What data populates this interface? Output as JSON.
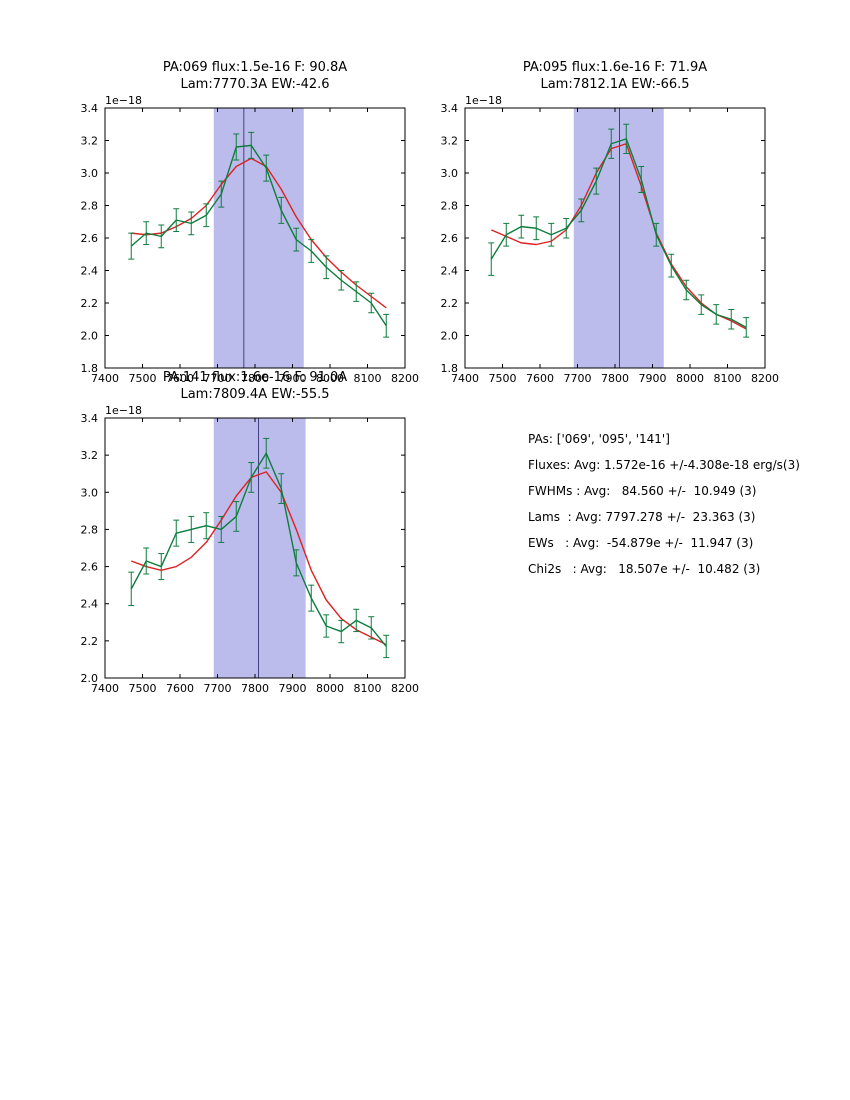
{
  "page": {
    "background": "#ffffff"
  },
  "stats": {
    "lines": [
      "PAs: ['069', '095', '141']",
      "Fluxes: Avg: 1.572e-16 +/-4.308e-18 erg/s(3)",
      "FWHMs : Avg:   84.560 +/-  10.949 (3)",
      "Lams  : Avg: 7797.278 +/-  23.363 (3)",
      "EWs   : Avg:  -54.879e +/-  11.947 (3)",
      "Chi2s   : Avg:   18.507e +/-  10.482 (3)"
    ]
  },
  "chart_data": [
    {
      "type": "line",
      "title_line1": "PA:069 flux:1.5e-16 F: 90.8A",
      "title_line2": "Lam:7770.3A EW:-42.6",
      "xlabel": "",
      "ylabel": "",
      "offset_label": "1e−18",
      "xlim": [
        7400,
        8200
      ],
      "ylim": [
        1.8,
        3.4
      ],
      "xticks": [
        7400,
        7500,
        7600,
        7700,
        7800,
        7900,
        8000,
        8100,
        8200
      ],
      "yticks": [
        1.8,
        2.0,
        2.2,
        2.4,
        2.6,
        2.8,
        3.0,
        3.2,
        3.4
      ],
      "band": [
        7690,
        7930
      ],
      "vline": 7770.3,
      "x": [
        7470,
        7510,
        7550,
        7590,
        7630,
        7670,
        7710,
        7750,
        7790,
        7830,
        7870,
        7910,
        7950,
        7990,
        8030,
        8070,
        8110,
        8150
      ],
      "series": [
        {
          "name": "spectrum",
          "color": "#0e7d3e",
          "values": [
            2.55,
            2.63,
            2.61,
            2.71,
            2.69,
            2.74,
            2.87,
            3.16,
            3.17,
            3.03,
            2.77,
            2.59,
            2.52,
            2.42,
            2.34,
            2.27,
            2.2,
            2.06
          ],
          "yerr": [
            0.08,
            0.07,
            0.07,
            0.07,
            0.07,
            0.07,
            0.08,
            0.08,
            0.08,
            0.08,
            0.08,
            0.07,
            0.07,
            0.07,
            0.06,
            0.06,
            0.06,
            0.07
          ]
        },
        {
          "name": "fit",
          "color": "#dd2222",
          "values": [
            2.63,
            2.62,
            2.63,
            2.67,
            2.72,
            2.8,
            2.93,
            3.04,
            3.09,
            3.04,
            2.9,
            2.73,
            2.59,
            2.48,
            2.39,
            2.31,
            2.24,
            2.17
          ]
        }
      ],
      "colors": {
        "band": "#bcbcec",
        "vline": "#222266",
        "frame": "#000000"
      }
    },
    {
      "type": "line",
      "title_line1": "PA:095 flux:1.6e-16 F: 71.9A",
      "title_line2": "Lam:7812.1A EW:-66.5",
      "xlabel": "",
      "ylabel": "",
      "offset_label": "1e−18",
      "xlim": [
        7400,
        8200
      ],
      "ylim": [
        1.8,
        3.4
      ],
      "xticks": [
        7400,
        7500,
        7600,
        7700,
        7800,
        7900,
        8000,
        8100,
        8200
      ],
      "yticks": [
        1.8,
        2.0,
        2.2,
        2.4,
        2.6,
        2.8,
        3.0,
        3.2,
        3.4
      ],
      "band": [
        7690,
        7930
      ],
      "vline": 7812.1,
      "x": [
        7470,
        7510,
        7550,
        7590,
        7630,
        7670,
        7710,
        7750,
        7790,
        7830,
        7870,
        7910,
        7950,
        7990,
        8030,
        8070,
        8110,
        8150
      ],
      "series": [
        {
          "name": "spectrum",
          "color": "#0e7d3e",
          "values": [
            2.47,
            2.62,
            2.67,
            2.66,
            2.62,
            2.66,
            2.77,
            2.95,
            3.18,
            3.21,
            2.96,
            2.62,
            2.43,
            2.28,
            2.19,
            2.13,
            2.1,
            2.05
          ],
          "yerr": [
            0.1,
            0.07,
            0.07,
            0.07,
            0.07,
            0.06,
            0.07,
            0.08,
            0.09,
            0.09,
            0.08,
            0.07,
            0.07,
            0.06,
            0.06,
            0.06,
            0.06,
            0.06
          ]
        },
        {
          "name": "fit",
          "color": "#dd2222",
          "values": [
            2.65,
            2.61,
            2.57,
            2.56,
            2.58,
            2.65,
            2.8,
            3.0,
            3.15,
            3.18,
            2.92,
            2.63,
            2.44,
            2.3,
            2.2,
            2.13,
            2.09,
            2.04
          ]
        }
      ],
      "colors": {
        "band": "#bcbcec",
        "vline": "#222266",
        "frame": "#000000"
      }
    },
    {
      "type": "line",
      "title_line1": "PA:141 flux:1.6e-16 F: 91.0A",
      "title_line2": "Lam:7809.4A EW:-55.5",
      "xlabel": "",
      "ylabel": "",
      "offset_label": "1e−18",
      "xlim": [
        7400,
        8200
      ],
      "ylim": [
        2.0,
        3.4
      ],
      "xticks": [
        7400,
        7500,
        7600,
        7700,
        7800,
        7900,
        8000,
        8100,
        8200
      ],
      "yticks": [
        2.0,
        2.2,
        2.4,
        2.6,
        2.8,
        3.0,
        3.2,
        3.4
      ],
      "band": [
        7690,
        7935
      ],
      "vline": 7809.4,
      "x": [
        7470,
        7510,
        7550,
        7590,
        7630,
        7670,
        7710,
        7750,
        7790,
        7830,
        7870,
        7910,
        7950,
        7990,
        8030,
        8070,
        8110,
        8150
      ],
      "series": [
        {
          "name": "spectrum",
          "color": "#0e7d3e",
          "values": [
            2.48,
            2.63,
            2.6,
            2.78,
            2.8,
            2.82,
            2.8,
            2.87,
            3.08,
            3.21,
            3.02,
            2.62,
            2.43,
            2.28,
            2.25,
            2.31,
            2.27,
            2.17
          ],
          "yerr": [
            0.09,
            0.07,
            0.07,
            0.07,
            0.07,
            0.07,
            0.07,
            0.08,
            0.08,
            0.08,
            0.08,
            0.07,
            0.07,
            0.06,
            0.06,
            0.06,
            0.06,
            0.06
          ]
        },
        {
          "name": "fit",
          "color": "#dd2222",
          "values": [
            2.63,
            2.6,
            2.58,
            2.6,
            2.65,
            2.73,
            2.85,
            2.98,
            3.08,
            3.11,
            3.0,
            2.8,
            2.58,
            2.42,
            2.32,
            2.26,
            2.22,
            2.18
          ]
        }
      ],
      "colors": {
        "band": "#bcbcec",
        "vline": "#222266",
        "frame": "#000000"
      }
    }
  ]
}
